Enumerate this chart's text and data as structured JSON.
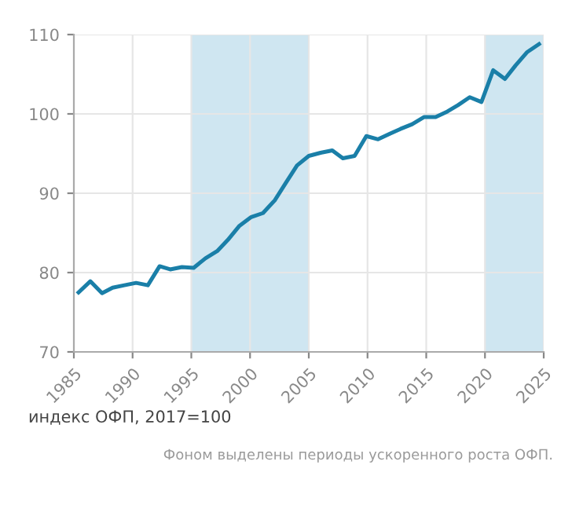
{
  "chart_data": {
    "type": "line",
    "x": [
      1985.4,
      1986.4,
      1987.4,
      1988.3,
      1989.3,
      1990.3,
      1991.3,
      1992.3,
      1993.2,
      1994.2,
      1995.2,
      1996.2,
      1997.2,
      1998.1,
      1999.1,
      2000.1,
      2001.1,
      2002.1,
      2003.0,
      2004.0,
      2005.0,
      2006.0,
      2007.0,
      2007.9,
      2008.9,
      2009.9,
      2010.9,
      2011.9,
      2012.8,
      2013.8,
      2014.8,
      2015.8,
      2016.8,
      2017.7,
      2018.7,
      2019.7,
      2020.7,
      2021.7,
      2022.6,
      2023.6,
      2024.6
    ],
    "series": [
      {
        "color": "#1a7fa8",
        "values": [
          77.5,
          78.9,
          77.4,
          78.1,
          78.4,
          78.7,
          78.4,
          80.8,
          80.4,
          80.7,
          80.6,
          81.8,
          82.7,
          84.1,
          85.9,
          87.0,
          87.5,
          89.1,
          91.2,
          93.5,
          94.7,
          95.1,
          95.4,
          94.4,
          94.7,
          97.2,
          96.8,
          97.5,
          98.1,
          98.7,
          99.6,
          99.6,
          100.3,
          101.1,
          102.1,
          101.5,
          105.5,
          104.4,
          106.1,
          107.8,
          108.8
        ]
      }
    ],
    "xlim": [
      1985,
      2025
    ],
    "xticks": [
      1985,
      1990,
      1995,
      2000,
      2005,
      2010,
      2015,
      2020,
      2025
    ],
    "ylim": [
      70,
      110
    ],
    "yticks": [
      70,
      80,
      90,
      100,
      110
    ],
    "grid": true,
    "marker": "none",
    "line_style": "solid",
    "bands": [
      {
        "axis": "x",
        "from": 1995,
        "to": 2005,
        "color": "#cfe6f1"
      },
      {
        "axis": "x",
        "from": 2020,
        "to": 2025,
        "color": "#cfe6f1"
      }
    ],
    "annotations": [
      "индекс ОФП, 2017=100",
      "Фоном выделены периоды ускоренного роста ОФП."
    ]
  }
}
